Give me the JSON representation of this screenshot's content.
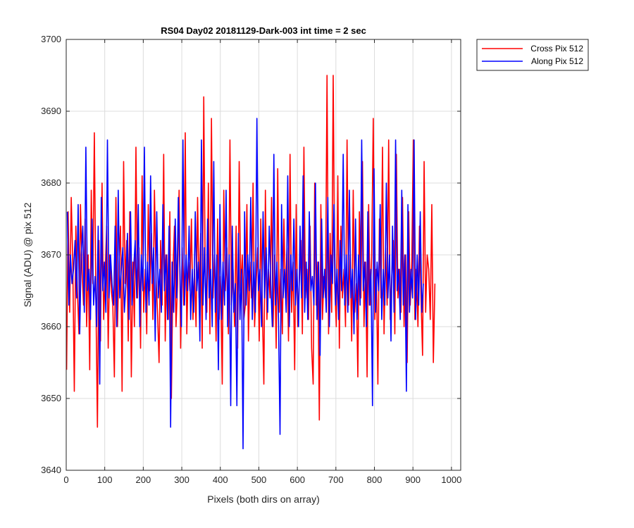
{
  "chart_data": {
    "type": "line",
    "title": "RS04 Day02 20181129-Dark-003 int time = 2 sec",
    "xlabel": "Pixels (both dirs on array)",
    "ylabel": "Signal (ADU) @ pix 512",
    "xlim": [
      0,
      1024
    ],
    "ylim": [
      3640,
      3700
    ],
    "xticks": [
      0,
      100,
      200,
      300,
      400,
      500,
      600,
      700,
      800,
      900,
      1000
    ],
    "yticks": [
      3640,
      3650,
      3660,
      3670,
      3680,
      3690,
      3700
    ],
    "grid": true,
    "legend_position": "outside-top-right",
    "series": [
      {
        "name": "Cross Pix 512",
        "color": "#ff0000",
        "x_start": 1,
        "x_step": 4,
        "values": [
          3654,
          3676,
          3662,
          3678,
          3669,
          3651,
          3674,
          3665,
          3659,
          3677,
          3668,
          3663,
          3675,
          3660,
          3670,
          3654,
          3679,
          3666,
          3687,
          3664,
          3646,
          3672,
          3658,
          3680,
          3661,
          3667,
          3674,
          3657,
          3670,
          3665,
          3663,
          3653,
          3678,
          3660,
          3669,
          3674,
          3651,
          3683,
          3666,
          3672,
          3658,
          3676,
          3653,
          3669,
          3660,
          3685,
          3664,
          3671,
          3657,
          3681,
          3662,
          3668,
          3659,
          3677,
          3665,
          3673,
          3661,
          3679,
          3667,
          3662,
          3655,
          3672,
          3663,
          3684,
          3658,
          3670,
          3661,
          3676,
          3650,
          3668,
          3674,
          3660,
          3666,
          3679,
          3657,
          3671,
          3663,
          3687,
          3659,
          3669,
          3665,
          3675,
          3661,
          3668,
          3660,
          3678,
          3664,
          3673,
          3657,
          3692,
          3666,
          3662,
          3680,
          3659,
          3689,
          3664,
          3670,
          3658,
          3675,
          3661,
          3667,
          3652,
          3679,
          3665,
          3671,
          3659,
          3686,
          3663,
          3668,
          3660,
          3674,
          3657,
          3683,
          3665,
          3670,
          3661,
          3663,
          3677,
          3658,
          3669,
          3664,
          3680,
          3660,
          3666,
          3671,
          3658,
          3675,
          3663,
          3652,
          3679,
          3661,
          3668,
          3664,
          3678,
          3660,
          3670,
          3657,
          3682,
          3662,
          3668,
          3659,
          3675,
          3664,
          3671,
          3658,
          3684,
          3662,
          3669,
          3654,
          3677,
          3660,
          3666,
          3672,
          3659,
          3685,
          3664,
          3668,
          3661,
          3674,
          3657,
          3652,
          3680,
          3663,
          3669,
          3647,
          3677,
          3661,
          3667,
          3664,
          3695,
          3659,
          3673,
          3662,
          3695,
          3666,
          3660,
          3681,
          3657,
          3674,
          3664,
          3668,
          3660,
          3686,
          3663,
          3670,
          3658,
          3679,
          3662,
          3666,
          3653,
          3676,
          3664,
          3683,
          3660,
          3669,
          3653,
          3677,
          3663,
          3670,
          3689,
          3661,
          3668,
          3652,
          3675,
          3664,
          3685,
          3659,
          3671,
          3663,
          3686,
          3661,
          3667,
          3672,
          3659,
          3684,
          3664,
          3668,
          3662,
          3678,
          3660,
          3670,
          3655,
          3676,
          3663,
          3669,
          3686,
          3661,
          3668,
          3660,
          3674,
          3664,
          3656,
          3683,
          3662,
          3670,
          3668,
          3661,
          3677,
          3655,
          3666
        ]
      },
      {
        "name": "Along Pix 512",
        "color": "#0000ff",
        "x_start": 3,
        "x_step": 4,
        "values": [
          3676,
          3663,
          3670,
          3666,
          3668,
          3672,
          3664,
          3677,
          3659,
          3670,
          3674,
          3662,
          3685,
          3665,
          3668,
          3661,
          3675,
          3663,
          3667,
          3660,
          3674,
          3652,
          3678,
          3665,
          3669,
          3662,
          3686,
          3664,
          3670,
          3666,
          3663,
          3674,
          3660,
          3679,
          3664,
          3668,
          3671,
          3662,
          3666,
          3673,
          3661,
          3676,
          3663,
          3668,
          3672,
          3664,
          3677,
          3660,
          3670,
          3665,
          3685,
          3662,
          3669,
          3663,
          3681,
          3666,
          3671,
          3658,
          3676,
          3664,
          3668,
          3662,
          3677,
          3665,
          3670,
          3661,
          3674,
          3646,
          3669,
          3662,
          3675,
          3664,
          3678,
          3668,
          3660,
          3686,
          3663,
          3670,
          3665,
          3674,
          3661,
          3668,
          3662,
          3676,
          3665,
          3669,
          3658,
          3686,
          3663,
          3671,
          3661,
          3675,
          3664,
          3668,
          3660,
          3683,
          3662,
          3670,
          3654,
          3677,
          3661,
          3669,
          3663,
          3679,
          3660,
          3670,
          3649,
          3674,
          3662,
          3666,
          3649,
          3673,
          3661,
          3668,
          3643,
          3676,
          3663,
          3670,
          3665,
          3678,
          3661,
          3669,
          3662,
          3689,
          3665,
          3668,
          3660,
          3676,
          3664,
          3671,
          3662,
          3674,
          3666,
          3660,
          3684,
          3663,
          3669,
          3661,
          3645,
          3677,
          3664,
          3668,
          3662,
          3681,
          3660,
          3670,
          3665,
          3675,
          3663,
          3668,
          3660,
          3674,
          3664,
          3681,
          3662,
          3669,
          3661,
          3676,
          3665,
          3667,
          3663,
          3680,
          3661,
          3669,
          3656,
          3675,
          3664,
          3668,
          3662,
          3678,
          3660,
          3670,
          3666,
          3677,
          3663,
          3668,
          3661,
          3672,
          3665,
          3684,
          3663,
          3670,
          3662,
          3679,
          3664,
          3668,
          3659,
          3675,
          3661,
          3670,
          3663,
          3686,
          3665,
          3669,
          3660,
          3676,
          3663,
          3668,
          3649,
          3682,
          3662,
          3669,
          3665,
          3677,
          3661,
          3668,
          3663,
          3680,
          3664,
          3670,
          3658,
          3674,
          3662,
          3686,
          3665,
          3668,
          3661,
          3679,
          3663,
          3670,
          3651,
          3677,
          3662,
          3668,
          3664,
          3686,
          3661,
          3670,
          3663,
          3676,
          3662,
          3666
        ]
      }
    ]
  }
}
